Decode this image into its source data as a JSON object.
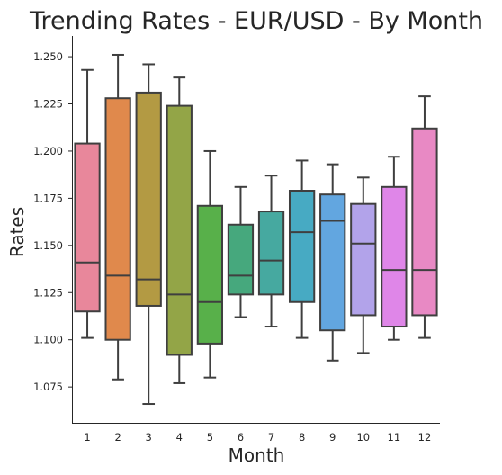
{
  "chart_data": {
    "type": "box",
    "title": "Trending Rates - EUR/USD - By Month",
    "xlabel": "Month",
    "ylabel": "Rates",
    "ylim": [
      1.056,
      1.261
    ],
    "yticks": [
      "1.075",
      "1.100",
      "1.125",
      "1.150",
      "1.175",
      "1.200",
      "1.225",
      "1.250"
    ],
    "categories": [
      "1",
      "2",
      "3",
      "4",
      "5",
      "6",
      "7",
      "8",
      "9",
      "10",
      "11",
      "12"
    ],
    "boxes": [
      {
        "category": "1",
        "whisker_low": 1.101,
        "q1": 1.115,
        "median": 1.141,
        "q3": 1.204,
        "whisker_high": 1.243,
        "color": "#e8879b"
      },
      {
        "category": "2",
        "whisker_low": 1.079,
        "q1": 1.1,
        "median": 1.134,
        "q3": 1.228,
        "whisker_high": 1.251,
        "color": "#e0894c"
      },
      {
        "category": "3",
        "whisker_low": 1.066,
        "q1": 1.118,
        "median": 1.132,
        "q3": 1.231,
        "whisker_high": 1.246,
        "color": "#b39a43"
      },
      {
        "category": "4",
        "whisker_low": 1.077,
        "q1": 1.092,
        "median": 1.124,
        "q3": 1.224,
        "whisker_high": 1.239,
        "color": "#93a547"
      },
      {
        "category": "5",
        "whisker_low": 1.08,
        "q1": 1.098,
        "median": 1.12,
        "q3": 1.171,
        "whisker_high": 1.2,
        "color": "#58b04a"
      },
      {
        "category": "6",
        "whisker_low": 1.112,
        "q1": 1.124,
        "median": 1.134,
        "q3": 1.161,
        "whisker_high": 1.181,
        "color": "#46a87d"
      },
      {
        "category": "7",
        "whisker_low": 1.107,
        "q1": 1.124,
        "median": 1.142,
        "q3": 1.168,
        "whisker_high": 1.187,
        "color": "#46a9a0"
      },
      {
        "category": "8",
        "whisker_low": 1.101,
        "q1": 1.12,
        "median": 1.157,
        "q3": 1.179,
        "whisker_high": 1.195,
        "color": "#47aac3"
      },
      {
        "category": "9",
        "whisker_low": 1.089,
        "q1": 1.105,
        "median": 1.163,
        "q3": 1.177,
        "whisker_high": 1.193,
        "color": "#62a6e0"
      },
      {
        "category": "10",
        "whisker_low": 1.093,
        "q1": 1.113,
        "median": 1.151,
        "q3": 1.172,
        "whisker_high": 1.186,
        "color": "#b2a3ea"
      },
      {
        "category": "11",
        "whisker_low": 1.1,
        "q1": 1.107,
        "median": 1.137,
        "q3": 1.181,
        "whisker_high": 1.197,
        "color": "#df86e8"
      },
      {
        "category": "12",
        "whisker_low": 1.101,
        "q1": 1.113,
        "median": 1.137,
        "q3": 1.212,
        "whisker_high": 1.229,
        "color": "#e889c4"
      }
    ],
    "grid": false,
    "legend": "none"
  }
}
